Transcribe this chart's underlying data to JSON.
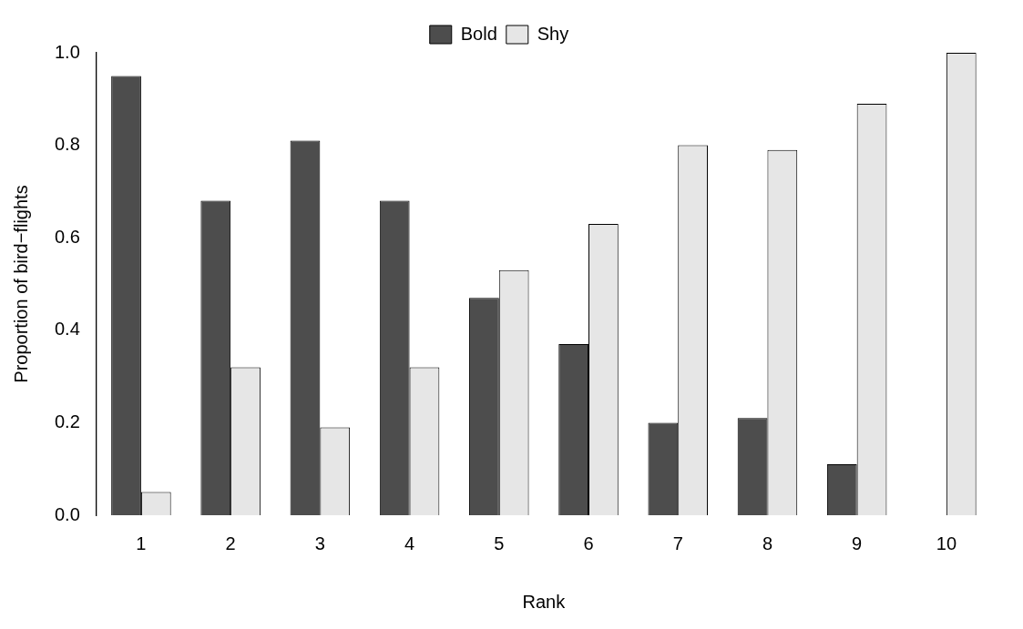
{
  "chart_data": {
    "type": "bar",
    "xlabel": "Rank",
    "ylabel": "Proportion of bird−flights",
    "categories": [
      "1",
      "2",
      "3",
      "4",
      "5",
      "6",
      "7",
      "8",
      "9",
      "10"
    ],
    "series": [
      {
        "name": "Bold",
        "color": "#4d4d4d",
        "values": [
          0.95,
          0.68,
          0.81,
          0.68,
          0.47,
          0.37,
          0.2,
          0.21,
          0.11,
          0
        ]
      },
      {
        "name": "Shy",
        "color": "#e6e6e6",
        "values": [
          0.05,
          0.32,
          0.19,
          0.32,
          0.53,
          0.63,
          0.8,
          0.79,
          0.89,
          1
        ]
      }
    ],
    "ylim": [
      0,
      1
    ],
    "yticks": [
      {
        "value": 0,
        "label": "0.0"
      },
      {
        "value": 0.2,
        "label": "0.2"
      },
      {
        "value": 0.4,
        "label": "0.4"
      },
      {
        "value": 0.6,
        "label": "0.6"
      },
      {
        "value": 0.8,
        "label": "0.8"
      },
      {
        "value": 1,
        "label": "1.0"
      }
    ],
    "grid": false,
    "legend": "top"
  }
}
